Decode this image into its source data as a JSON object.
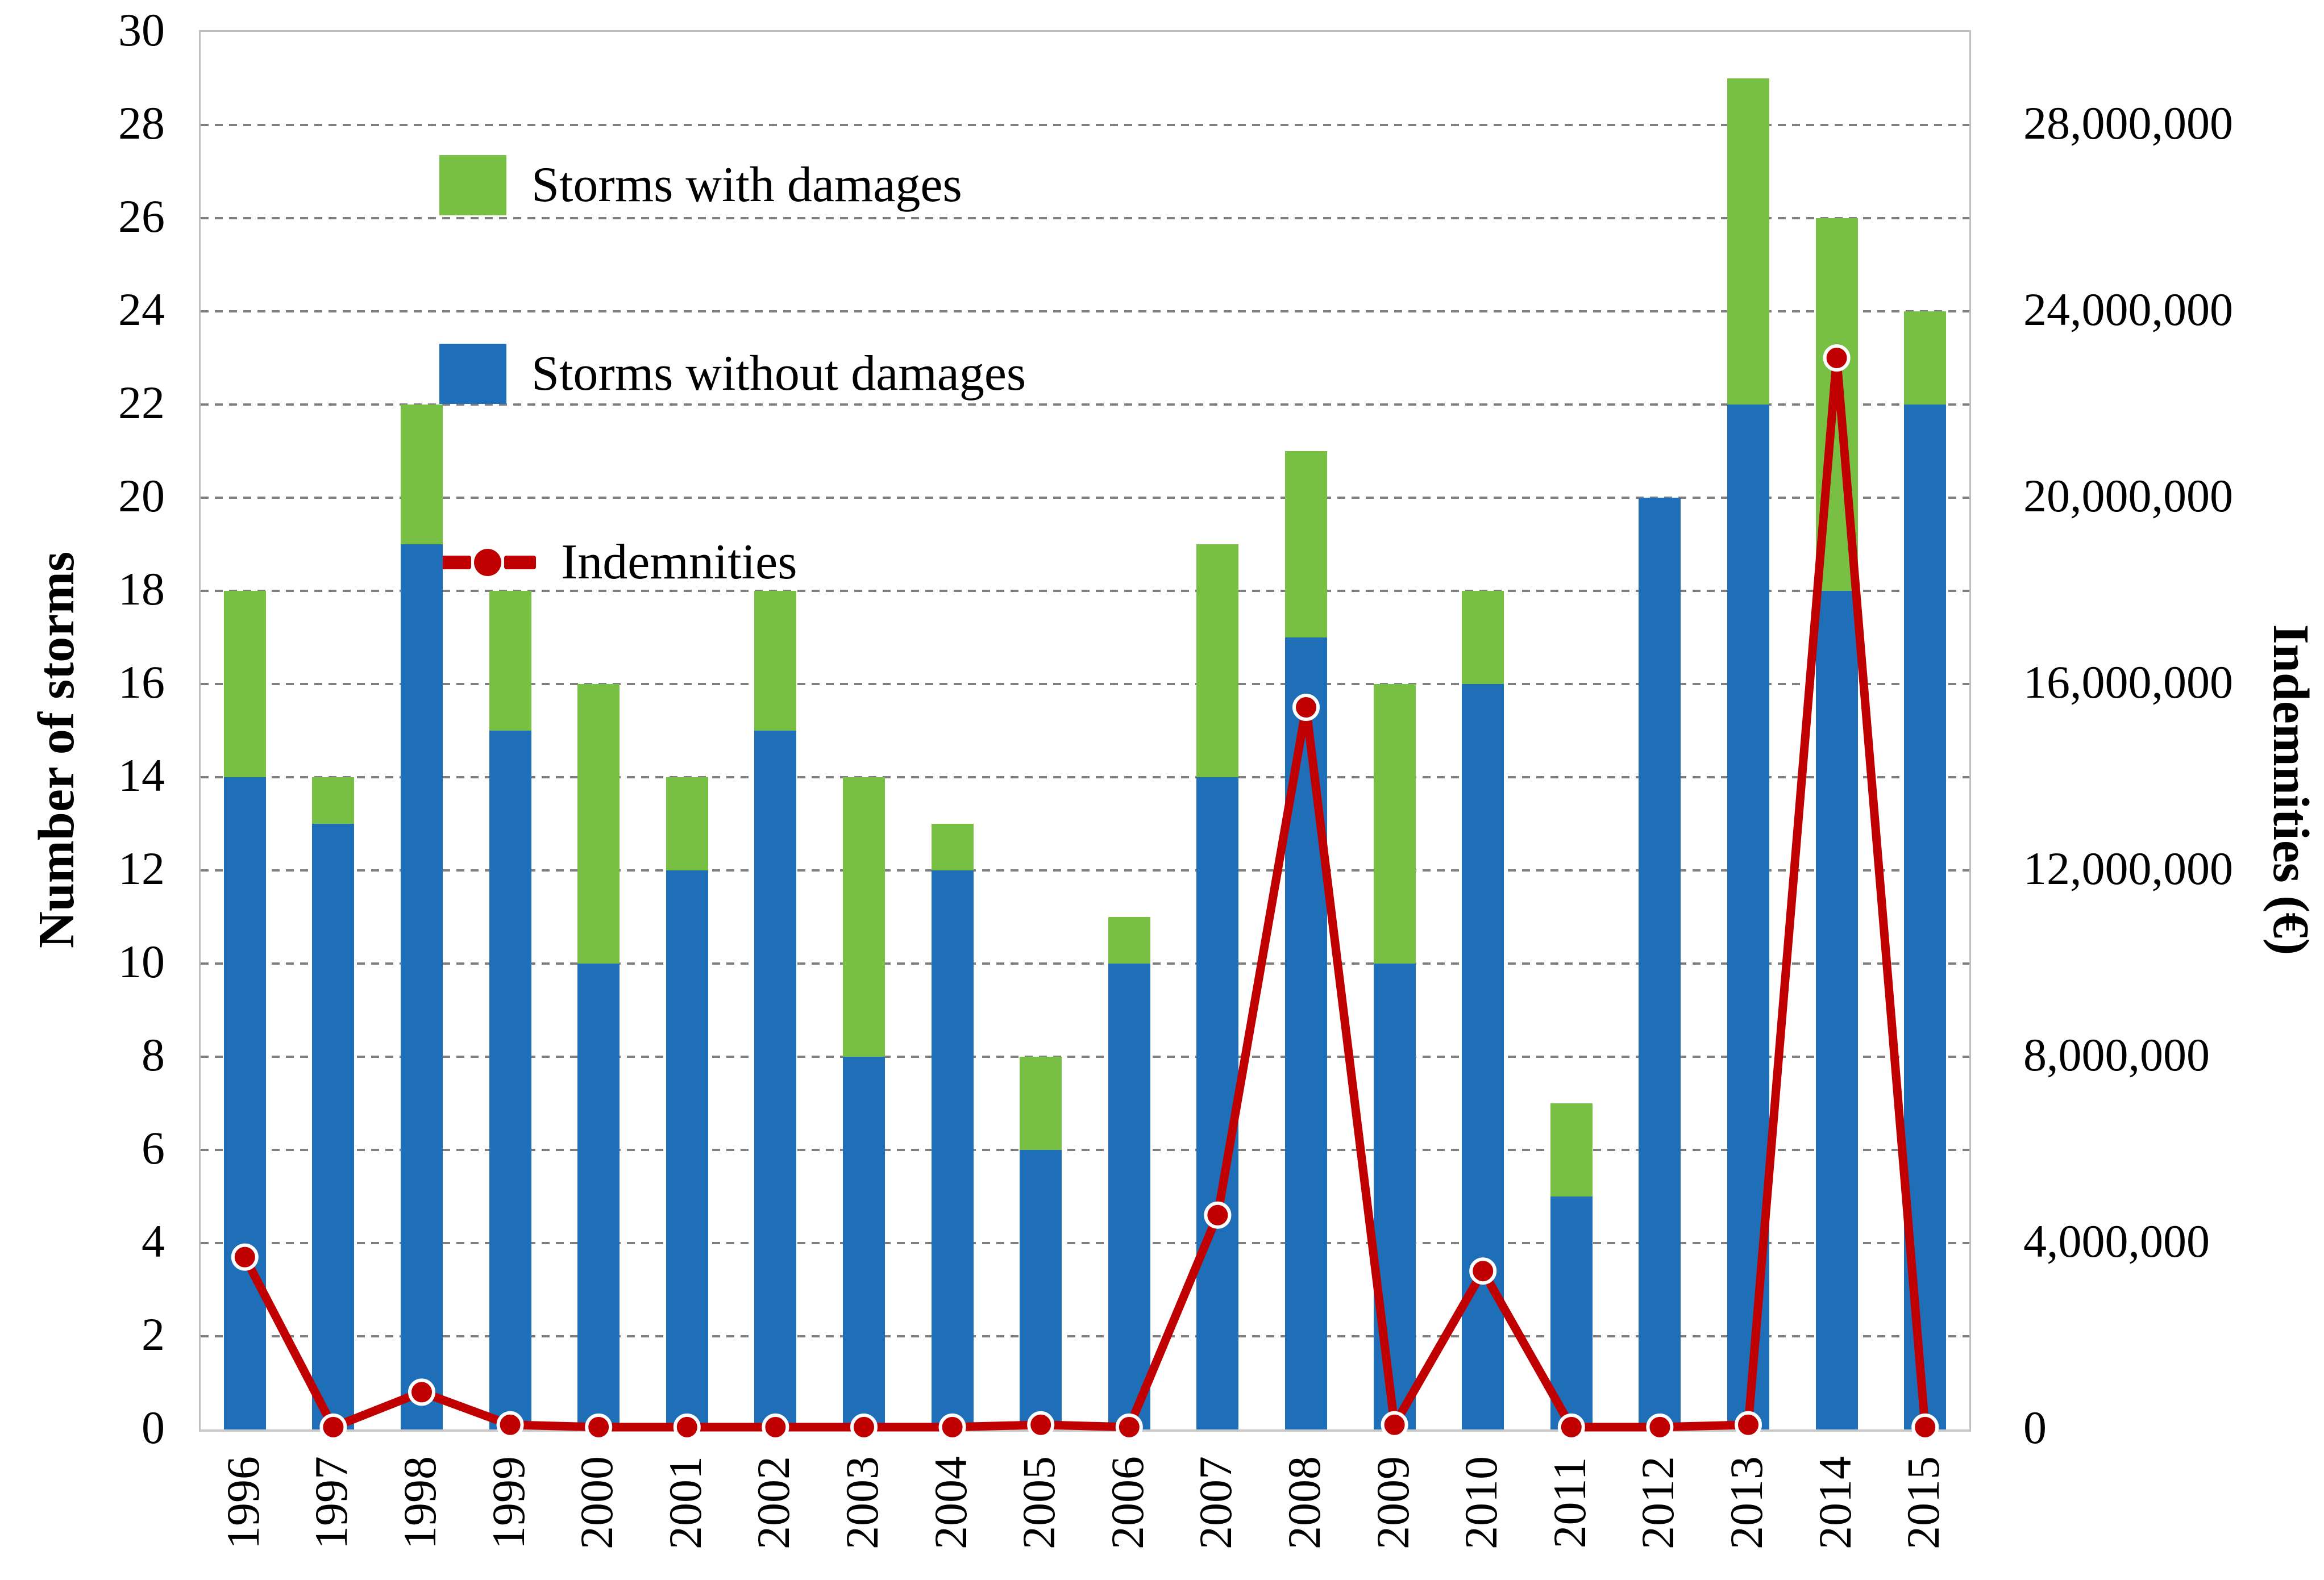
{
  "chart_data": {
    "type": "bar",
    "subtype": "stacked-bars-with-line",
    "title": "",
    "categories": [
      "1996",
      "1997",
      "1998",
      "1999",
      "2000",
      "2001",
      "2002",
      "2003",
      "2004",
      "2005",
      "2006",
      "2007",
      "2008",
      "2009",
      "2010",
      "2011",
      "2012",
      "2013",
      "2014",
      "2015"
    ],
    "series": [
      {
        "name": "Storms with damages",
        "type": "bar",
        "stack": "top",
        "color": "#77C043",
        "values": [
          4,
          1,
          3,
          3,
          6,
          2,
          3,
          6,
          1,
          2,
          1,
          5,
          4,
          6,
          2,
          2,
          0,
          7,
          8,
          2
        ]
      },
      {
        "name": "Storms without damages",
        "type": "bar",
        "stack": "bottom",
        "color": "#1F6FB8",
        "values": [
          14,
          13,
          19,
          15,
          10,
          12,
          15,
          8,
          12,
          6,
          10,
          14,
          17,
          10,
          16,
          5,
          20,
          22,
          18,
          22
        ]
      },
      {
        "name": "Indemnities",
        "type": "line",
        "axis": "right",
        "color": "#C00000",
        "marker_stroke": "#FFFFFF",
        "values": [
          3700000,
          50000,
          800000,
          100000,
          50000,
          50000,
          50000,
          50000,
          50000,
          100000,
          50000,
          4600000,
          15500000,
          100000,
          3400000,
          50000,
          50000,
          100000,
          23000000,
          50000
        ]
      }
    ],
    "stack_totals": [
      18,
      14,
      22,
      18,
      16,
      14,
      18,
      14,
      13,
      8,
      11,
      19,
      21,
      16,
      18,
      7,
      20,
      29,
      26,
      24
    ],
    "ylabel": "Number of storms",
    "y2label": "Indemnities (€)",
    "ylim": [
      0,
      30
    ],
    "ytick_step": 2,
    "y2lim": [
      0,
      30000000
    ],
    "y2tick_step": 4000000,
    "y2tick_max_label": 28000000,
    "grid": "horizontal-dashed",
    "gridline_color": "#7F7F7F",
    "legend_position": "top-left-inside",
    "axis_text_color": "#000000"
  }
}
